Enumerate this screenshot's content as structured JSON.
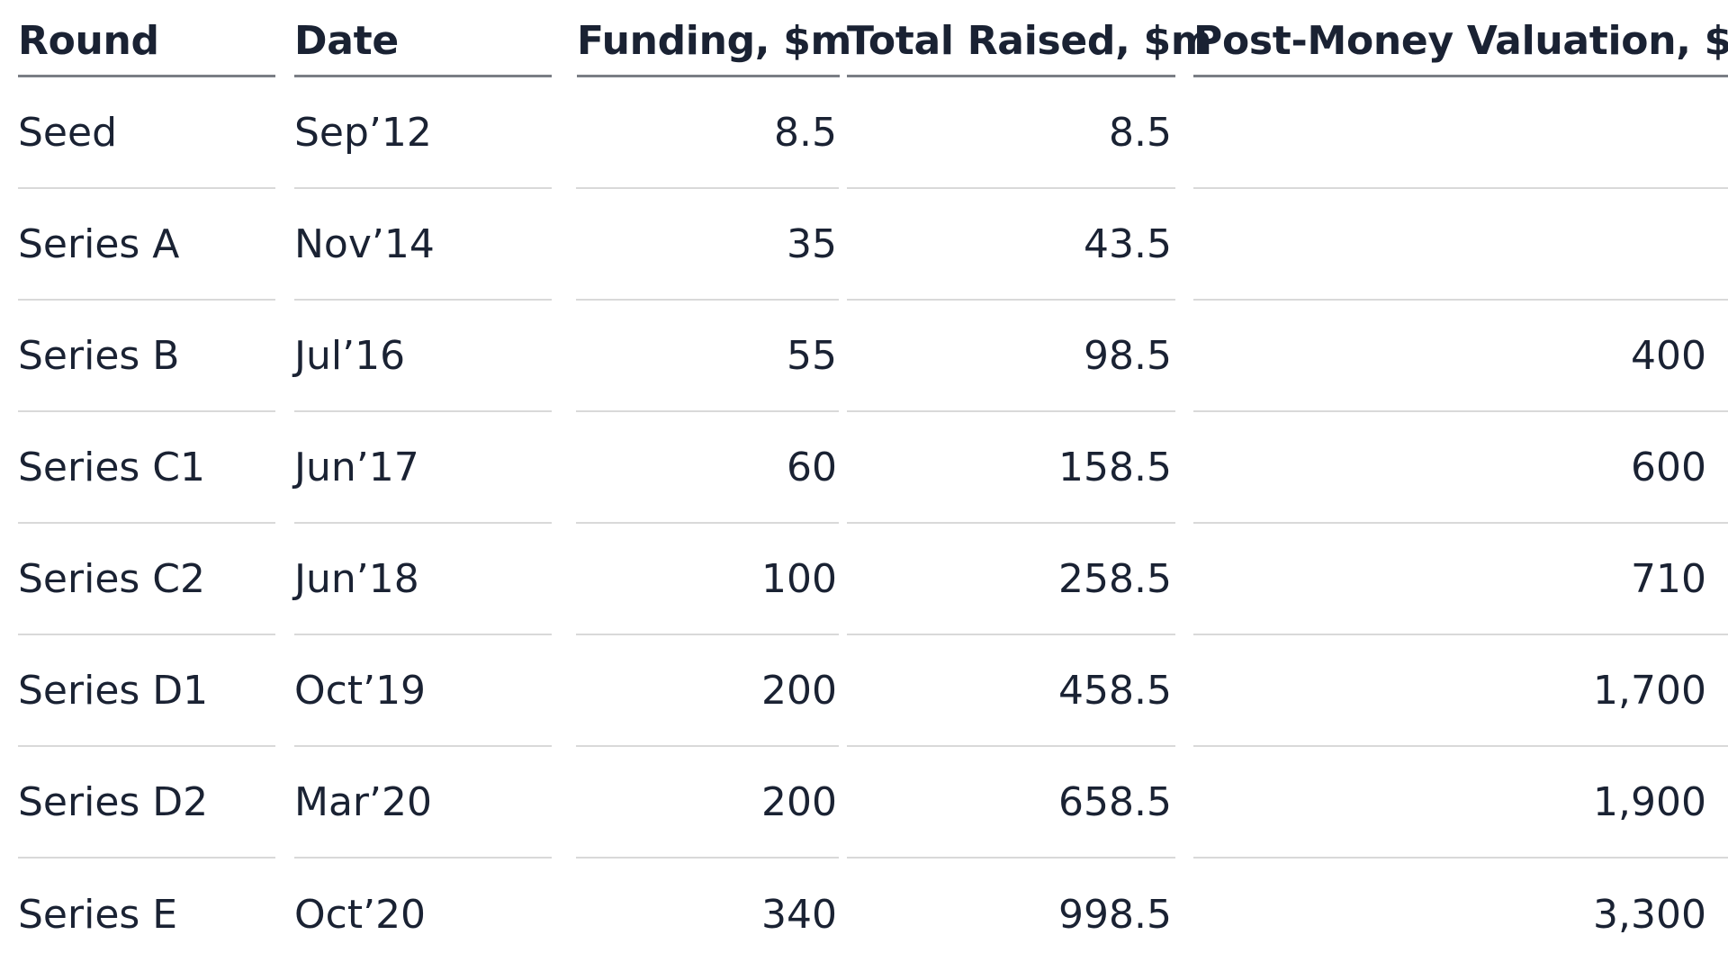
{
  "table": {
    "headers": {
      "round": "Round",
      "date": "Date",
      "funding": "Funding, $m",
      "total_raised": "Total Raised, $m",
      "post_money": "Post-Money Valuation, $m"
    },
    "rows": [
      {
        "round": "Seed",
        "date": "Sep’12",
        "funding": "8.5",
        "total_raised": "8.5",
        "post_money": ""
      },
      {
        "round": "Series A",
        "date": "Nov’14",
        "funding": "35",
        "total_raised": "43.5",
        "post_money": ""
      },
      {
        "round": "Series B",
        "date": "Jul’16",
        "funding": "55",
        "total_raised": "98.5",
        "post_money": "400"
      },
      {
        "round": "Series C1",
        "date": "Jun’17",
        "funding": "60",
        "total_raised": "158.5",
        "post_money": "600"
      },
      {
        "round": "Series C2",
        "date": "Jun’18",
        "funding": "100",
        "total_raised": "258.5",
        "post_money": "710"
      },
      {
        "round": "Series D1",
        "date": "Oct’19",
        "funding": "200",
        "total_raised": "458.5",
        "post_money": "1,700"
      },
      {
        "round": "Series D2",
        "date": "Mar’20",
        "funding": "200",
        "total_raised": "658.5",
        "post_money": "1,900"
      },
      {
        "round": "Series E",
        "date": "Oct’20",
        "funding": "340",
        "total_raised": "998.5",
        "post_money": "3,300"
      }
    ]
  }
}
